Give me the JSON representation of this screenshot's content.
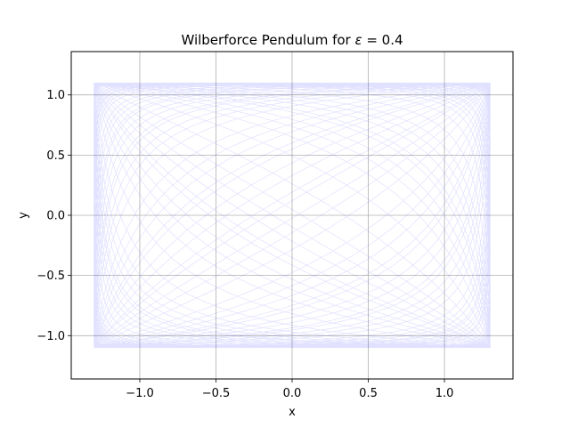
{
  "chart_data": {
    "type": "line",
    "title_prefix": "Wilberforce Pendulum for ",
    "title_symbol": "ε",
    "title_suffix": " = 0.4",
    "xlabel": "x",
    "ylabel": "y",
    "xlim": [
      -1.45,
      1.45
    ],
    "ylim": [
      -1.36,
      1.36
    ],
    "xticks": [
      -1.0,
      -0.5,
      0.0,
      0.5,
      1.0
    ],
    "xtick_labels": [
      "−1.0",
      "−0.5",
      "0.0",
      "0.5",
      "1.0"
    ],
    "yticks": [
      -1.0,
      -0.5,
      0.0,
      0.5,
      1.0
    ],
    "ytick_labels": [
      "−1.0",
      "−0.5",
      "0.0",
      "0.5",
      "1.0"
    ],
    "grid": true,
    "series": [
      {
        "color": "#0000ff",
        "alpha": 0.12,
        "epsilon": 0.4,
        "amplitude_x": 1.3,
        "amplitude_y": 1.1,
        "base_frequency_x": 1.0,
        "base_frequency_y": 1.0,
        "t_max": 280,
        "samples": 6000
      }
    ]
  }
}
